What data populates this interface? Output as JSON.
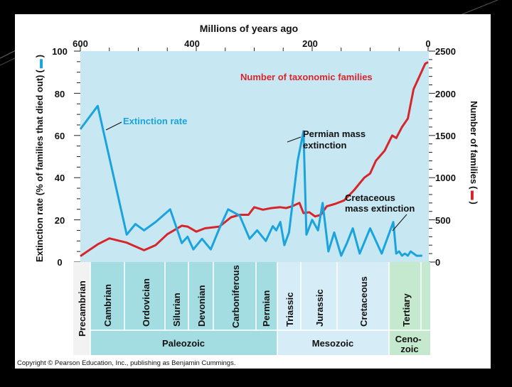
{
  "copyright": "Copyright © Pearson Education, Inc., publishing as Benjamin Cummings.",
  "colors": {
    "extinction": "#1aa3dc",
    "families": "#d7262b",
    "label_red": "#d7262b",
    "label_blue": "#1aa3dc",
    "plot_bg": "#c7e8f3"
  },
  "chart_data": {
    "type": "line",
    "title": "Millions of years ago",
    "x_direction": "reversed",
    "xlim": [
      600,
      0
    ],
    "x_ticks": [
      "600",
      "400",
      "200",
      "0"
    ],
    "left_axis": {
      "label": "Extinction rate (% of families that died out)",
      "label_suffix": "(",
      "label_end": ")",
      "ylim": [
        0,
        100
      ],
      "ticks": [
        "0",
        "20",
        "40",
        "60",
        "80",
        "100"
      ]
    },
    "right_axis": {
      "label": "Number of families",
      "label_prefix": "(",
      "label_end": ")",
      "ylim": [
        0,
        2500
      ],
      "ticks": [
        "0",
        "500",
        "1000",
        "1500",
        "2000",
        "2500"
      ]
    },
    "series": [
      {
        "name": "Extinction rate",
        "axis": "left",
        "x": [
          600,
          570,
          520,
          505,
          490,
          470,
          445,
          425,
          415,
          405,
          390,
          375,
          360,
          345,
          325,
          308,
          295,
          280,
          268,
          262,
          255,
          248,
          240,
          225,
          215,
          210,
          200,
          190,
          182,
          172,
          162,
          150,
          140,
          130,
          118,
          100,
          80,
          60,
          55,
          50,
          45,
          40,
          35,
          30,
          20,
          10
        ],
        "values": [
          63,
          74,
          13,
          18,
          15,
          19,
          25,
          9,
          12,
          6,
          11,
          6,
          16,
          25,
          22,
          11,
          15,
          10,
          17,
          15,
          19,
          8,
          14,
          48,
          62,
          13,
          20,
          15,
          28,
          5,
          14,
          3,
          9,
          16,
          4,
          16,
          4,
          19,
          4,
          5,
          3,
          4,
          3,
          5,
          3,
          3
        ]
      },
      {
        "name": "Number of taxonomic families",
        "axis": "right",
        "x": [
          600,
          570,
          550,
          520,
          490,
          470,
          450,
          425,
          415,
          400,
          385,
          360,
          340,
          325,
          310,
          300,
          285,
          270,
          255,
          245,
          235,
          222,
          215,
          205,
          195,
          185,
          175,
          160,
          145,
          128,
          110,
          100,
          90,
          75,
          62,
          55,
          45,
          35,
          25,
          15,
          5,
          0
        ],
        "values": [
          70,
          210,
          280,
          230,
          140,
          200,
          330,
          430,
          420,
          360,
          400,
          420,
          530,
          560,
          560,
          650,
          620,
          640,
          650,
          640,
          660,
          700,
          580,
          590,
          540,
          560,
          660,
          690,
          730,
          850,
          1000,
          1050,
          1200,
          1320,
          1500,
          1470,
          1600,
          1700,
          2050,
          2200,
          2350,
          2370
        ]
      }
    ],
    "annotations": [
      {
        "text": "Number of taxonomic families",
        "series": "Number of taxonomic families"
      },
      {
        "text": "Extinction rate",
        "series": "Extinction rate"
      },
      {
        "text": "Permian mass",
        "text2": "extinction"
      },
      {
        "text": "Cretaceous",
        "text2": "mass extinction"
      }
    ],
    "periods": [
      "Precambrian",
      "Cambrian",
      "Ordovician",
      "Silurian",
      "Devonian",
      "Carboniferous",
      "Permian",
      "Triassic",
      "Jurassic",
      "Cretaceous",
      "Tertiary"
    ],
    "eras": [
      "Paleozoic",
      "Mesozoic",
      "Ceno-",
      "zoic"
    ]
  }
}
